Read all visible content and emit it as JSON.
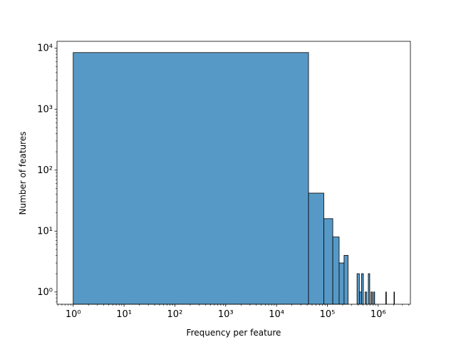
{
  "chart_data": {
    "type": "histogram",
    "x_label": "Frequency per feature",
    "y_label": "Number of features",
    "bins": [
      1,
      42601,
      85201,
      127801,
      170401,
      213001,
      255601,
      298201,
      340801,
      383401,
      426001,
      468601,
      511201,
      553801,
      596401,
      639001,
      681601,
      724201,
      766801,
      809401,
      852001,
      894601,
      937201,
      979801,
      1022401,
      1065001,
      1107601,
      1150201,
      1192801,
      1235401,
      1278001,
      1320601,
      1363201,
      1405801,
      1448401,
      1491001,
      1533601,
      1576201,
      1618801,
      1661401,
      1704001,
      1746601,
      1789201,
      1831801,
      1874401,
      1917001,
      1959601,
      2002201,
      2044801,
      2087401
    ],
    "values": [
      8500,
      42,
      16,
      8,
      3,
      4,
      0,
      0,
      0,
      2,
      1,
      2,
      0,
      1,
      0,
      2,
      0,
      1,
      0,
      1,
      0,
      0,
      0,
      0,
      0,
      0,
      0,
      0,
      0,
      0,
      0,
      0,
      0,
      1,
      0,
      0,
      0,
      0,
      0,
      0,
      0,
      0,
      0,
      0,
      0,
      0,
      0,
      0,
      1
    ],
    "color": "#5799c6",
    "xscale": "log",
    "yscale": "log",
    "xlim": [
      0.48,
      4300000
    ],
    "ylim": [
      0.63,
      13000
    ],
    "xticks": [
      {
        "value": 1,
        "label": "10⁰"
      },
      {
        "value": 10,
        "label": "10¹"
      },
      {
        "value": 100,
        "label": "10²"
      },
      {
        "value": 1000,
        "label": "10³"
      },
      {
        "value": 10000,
        "label": "10⁴"
      },
      {
        "value": 100000,
        "label": "10⁵"
      },
      {
        "value": 1000000,
        "label": "10⁶"
      }
    ],
    "yticks": [
      {
        "value": 1,
        "label": "10⁰"
      },
      {
        "value": 10,
        "label": "10¹"
      },
      {
        "value": 100,
        "label": "10²"
      },
      {
        "value": 1000,
        "label": "10³"
      },
      {
        "value": 10000,
        "label": "10⁴"
      }
    ]
  }
}
